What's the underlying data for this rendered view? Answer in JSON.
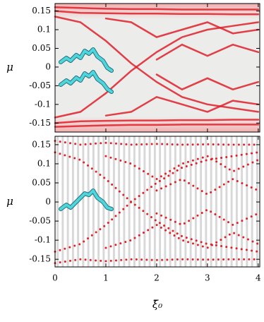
{
  "chart_data": [
    {
      "type": "line",
      "ylabel": "μ",
      "line_style": "solid",
      "x": [
        0,
        0.5,
        1,
        1.5,
        2,
        2.5,
        3,
        3.5,
        4
      ],
      "xlim": [
        0,
        4.03
      ],
      "ylim": [
        -0.174,
        0.17
      ],
      "yticks": [
        0.15,
        0.1,
        0.05,
        0,
        -0.05,
        -0.1,
        -0.15
      ],
      "series": [
        {
          "color": "#e0202a",
          "values": [
            0.16,
            0.158,
            0.156,
            0.155,
            0.155,
            0.154,
            0.154,
            0.154,
            0.154
          ]
        },
        {
          "color": "#e0202a",
          "values": [
            0.15,
            0.145,
            0.144,
            0.143,
            0.143,
            0.142,
            0.142,
            0.141,
            0.141
          ]
        },
        {
          "color": "#e0202a",
          "values": [
            0.135,
            0.12,
            0.07,
            0.01,
            -0.04,
            -0.08,
            -0.1,
            -0.11,
            -0.12
          ]
        },
        {
          "color": "#e0202a",
          "values": [
            -0.135,
            -0.12,
            -0.07,
            -0.01,
            0.04,
            0.08,
            0.1,
            0.11,
            0.12
          ]
        },
        {
          "color": "#e0202a",
          "values": [
            null,
            null,
            0.13,
            0.12,
            0.08,
            0.1,
            0.12,
            0.09,
            0.1
          ]
        },
        {
          "color": "#e0202a",
          "values": [
            null,
            null,
            -0.13,
            -0.12,
            -0.08,
            -0.1,
            -0.12,
            -0.09,
            -0.1
          ]
        },
        {
          "color": "#e0202a",
          "values": [
            null,
            null,
            null,
            null,
            0.02,
            0.06,
            0.03,
            0.06,
            0.04
          ]
        },
        {
          "color": "#e0202a",
          "values": [
            null,
            null,
            null,
            null,
            -0.02,
            -0.06,
            -0.03,
            -0.06,
            -0.04
          ]
        },
        {
          "color": "#e0202a",
          "values": [
            -0.16,
            -0.158,
            -0.156,
            -0.155,
            -0.155,
            -0.154,
            -0.154,
            -0.154,
            -0.154
          ]
        },
        {
          "color": "#e0202a",
          "values": [
            -0.15,
            -0.145,
            -0.144,
            -0.143,
            -0.143,
            -0.142,
            -0.142,
            -0.141,
            -0.141
          ]
        }
      ]
    },
    {
      "type": "line",
      "ylabel": "μ",
      "xlabel": "ξ̄₀",
      "line_style": "dotted",
      "x": [
        0,
        0.5,
        1,
        1.5,
        2,
        2.5,
        3,
        3.5,
        4
      ],
      "xlim": [
        0,
        4.03
      ],
      "ylim": [
        -0.17,
        0.172
      ],
      "xticks": [
        0,
        1,
        2,
        3,
        4
      ],
      "yticks": [
        0.15,
        0.1,
        0.05,
        0,
        -0.05,
        -0.1,
        -0.15
      ],
      "series": [
        {
          "color": "#e0202a",
          "values": [
            0.16,
            0.15,
            0.155,
            0.15,
            0.152,
            0.15,
            0.151,
            0.15,
            0.15
          ]
        },
        {
          "color": "#e0202a",
          "values": [
            0.13,
            0.11,
            0.06,
            0.0,
            -0.05,
            -0.09,
            -0.11,
            -0.12,
            -0.13
          ]
        },
        {
          "color": "#e0202a",
          "values": [
            -0.13,
            -0.11,
            -0.06,
            0.0,
            0.05,
            0.09,
            0.11,
            0.12,
            0.13
          ]
        },
        {
          "color": "#e0202a",
          "values": [
            null,
            null,
            0.12,
            0.1,
            0.06,
            0.1,
            0.12,
            0.08,
            0.11
          ]
        },
        {
          "color": "#e0202a",
          "values": [
            null,
            null,
            -0.12,
            -0.1,
            -0.06,
            -0.1,
            -0.12,
            -0.08,
            -0.11
          ]
        },
        {
          "color": "#e0202a",
          "values": [
            null,
            null,
            null,
            null,
            0.03,
            0.06,
            0.02,
            0.06,
            0.03
          ]
        },
        {
          "color": "#e0202a",
          "values": [
            null,
            null,
            null,
            null,
            -0.03,
            -0.06,
            -0.02,
            -0.06,
            -0.03
          ]
        },
        {
          "color": "#e0202a",
          "values": [
            -0.16,
            -0.15,
            -0.155,
            -0.15,
            -0.152,
            -0.15,
            -0.151,
            -0.15,
            -0.15
          ]
        }
      ]
    }
  ]
}
